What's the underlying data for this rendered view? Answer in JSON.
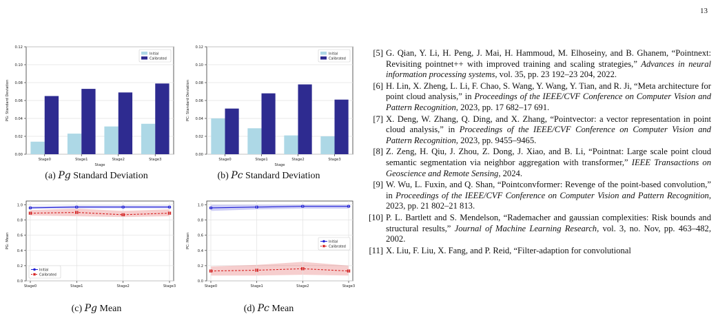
{
  "page_number": "13",
  "figures": [
    {
      "id": "a",
      "caption_prefix": "(a)",
      "caption_var": "Pg",
      "caption_rest": "Standard Deviation",
      "chart_data": {
        "type": "bar",
        "categories": [
          "Stage0",
          "Stage1",
          "Stage2",
          "Stage3"
        ],
        "series": [
          {
            "name": "Initial",
            "values": [
              0.014,
              0.023,
              0.031,
              0.034
            ],
            "color": "#add8e6"
          },
          {
            "name": "Calibrated",
            "values": [
              0.065,
              0.073,
              0.069,
              0.079
            ],
            "color": "#2e2b90"
          }
        ],
        "xlabel": "Stage",
        "ylabel": "PG: Standard Deviation",
        "ylim": [
          0,
          0.12
        ],
        "yticks": [
          "0.00",
          "0.02",
          "0.04",
          "0.06",
          "0.08",
          "0.10",
          "0.12"
        ],
        "grid": true,
        "legend": "top-right"
      }
    },
    {
      "id": "b",
      "caption_prefix": "(b)",
      "caption_var": "Pc",
      "caption_rest": "Standard Deviation",
      "chart_data": {
        "type": "bar",
        "categories": [
          "Stage0",
          "Stage1",
          "Stage2",
          "Stage3"
        ],
        "series": [
          {
            "name": "Initial",
            "values": [
              0.04,
              0.029,
              0.021,
              0.02
            ],
            "color": "#add8e6"
          },
          {
            "name": "Calibrated",
            "values": [
              0.051,
              0.068,
              0.078,
              0.061
            ],
            "color": "#2e2b90"
          }
        ],
        "xlabel": "Stage",
        "ylabel": "PC: Standard Deviation",
        "ylim": [
          0,
          0.12
        ],
        "yticks": [
          "0.00",
          "0.02",
          "0.04",
          "0.06",
          "0.08",
          "0.10",
          "0.12"
        ],
        "grid": true,
        "legend": "top-right"
      }
    },
    {
      "id": "c",
      "caption_prefix": "(c)",
      "caption_var": "Pg",
      "caption_rest": "Mean",
      "chart_data": {
        "type": "line",
        "categories": [
          "Stage0",
          "Stage1",
          "Stage2",
          "Stage3"
        ],
        "series": [
          {
            "name": "Initial",
            "values": [
              0.96,
              0.97,
              0.97,
              0.97
            ],
            "band": [
              [
                0.95,
                0.98
              ],
              [
                0.955,
                0.99
              ],
              [
                0.955,
                0.99
              ],
              [
                0.955,
                0.99
              ]
            ],
            "color": "#1f1fd6",
            "marker": "circle",
            "dash": false
          },
          {
            "name": "Calibrated",
            "values": [
              0.89,
              0.9,
              0.87,
              0.89
            ],
            "band": [
              [
                0.86,
                0.93
              ],
              [
                0.85,
                0.95
              ],
              [
                0.84,
                0.92
              ],
              [
                0.85,
                0.94
              ]
            ],
            "color": "#d62222",
            "marker": "square",
            "dash": true
          }
        ],
        "xlabel": "",
        "ylabel": "PG: Mean",
        "ylim": [
          0,
          1.05
        ],
        "yticks": [
          "0.0",
          "0.2",
          "0.4",
          "0.6",
          "0.8",
          "1.0"
        ],
        "grid": true,
        "legend": "bottom-left"
      }
    },
    {
      "id": "d",
      "caption_prefix": "(d)",
      "caption_var": "Pc",
      "caption_rest": "Mean",
      "chart_data": {
        "type": "line",
        "categories": [
          "Stage0",
          "Stage1",
          "Stage2",
          "Stage3"
        ],
        "series": [
          {
            "name": "Initial",
            "values": [
              0.96,
              0.97,
              0.98,
              0.98
            ],
            "band": [
              [
                0.92,
                1.0
              ],
              [
                0.94,
                1.0
              ],
              [
                0.95,
                1.0
              ],
              [
                0.95,
                1.0
              ]
            ],
            "color": "#1f1fd6",
            "marker": "circle",
            "dash": false
          },
          {
            "name": "Calibrated",
            "values": [
              0.13,
              0.14,
              0.16,
              0.13
            ],
            "band": [
              [
                0.07,
                0.19
              ],
              [
                0.07,
                0.21
              ],
              [
                0.08,
                0.25
              ],
              [
                0.07,
                0.2
              ]
            ],
            "color": "#d62222",
            "marker": "square",
            "dash": true
          }
        ],
        "xlabel": "",
        "ylabel": "PC: Mean",
        "ylim": [
          0,
          1.05
        ],
        "yticks": [
          "0.0",
          "0.2",
          "0.4",
          "0.6",
          "0.8",
          "1.0"
        ],
        "grid": true,
        "legend": "center-right"
      }
    }
  ],
  "references": [
    {
      "num": "[5]",
      "parts": [
        {
          "t": "G. Qian, Y. Li, H. Peng, J. Mai, H. Hammoud, M. Elhoseiny, and B. Ghanem, “Pointnext: Revisiting pointnet++ with improved training and scaling strategies,” "
        },
        {
          "t": "Advances in neural information processing systems",
          "i": true
        },
        {
          "t": ", vol. 35, pp. 23 192–23 204, 2022."
        }
      ]
    },
    {
      "num": "[6]",
      "parts": [
        {
          "t": "H. Lin, X. Zheng, L. Li, F. Chao, S. Wang, Y. Wang, Y. Tian, and R. Ji, “Meta architecture for point cloud analysis,” in "
        },
        {
          "t": "Proceedings of the IEEE/CVF Conference on Computer Vision and Pattern Recognition",
          "i": true
        },
        {
          "t": ", 2023, pp. 17 682–17 691."
        }
      ]
    },
    {
      "num": "[7]",
      "parts": [
        {
          "t": "X. Deng, W. Zhang, Q. Ding, and X. Zhang, “Pointvector: a vector representation in point cloud analysis,” in "
        },
        {
          "t": "Proceedings of the IEEE/CVF Conference on Computer Vision and Pattern Recognition",
          "i": true
        },
        {
          "t": ", 2023, pp. 9455–9465."
        }
      ]
    },
    {
      "num": "[8]",
      "parts": [
        {
          "t": "Z. Zeng, H. Qiu, J. Zhou, Z. Dong, J. Xiao, and B. Li, “Pointnat: Large scale point cloud semantic segmentation via neighbor aggregation with transformer,” "
        },
        {
          "t": "IEEE Transactions on Geoscience and Remote Sensing",
          "i": true
        },
        {
          "t": ", 2024."
        }
      ]
    },
    {
      "num": "[9]",
      "parts": [
        {
          "t": "W. Wu, L. Fuxin, and Q. Shan, “Pointconvformer: Revenge of the point-based convolution,” in "
        },
        {
          "t": "Proceedings of the IEEE/CVF Conference on Computer Vision and Pattern Recognition",
          "i": true
        },
        {
          "t": ", 2023, pp. 21 802–21 813."
        }
      ]
    },
    {
      "num": "[10]",
      "parts": [
        {
          "t": "P. L. Bartlett and S. Mendelson, “Rademacher and gaussian complexities: Risk bounds and structural results,” "
        },
        {
          "t": "Journal of Machine Learning Research",
          "i": true
        },
        {
          "t": ", vol. 3, no. Nov, pp. 463–482, 2002."
        }
      ]
    },
    {
      "num": "[11]",
      "parts": [
        {
          "t": "X. Liu, F. Liu, X. Fang, and P. Reid, “Filter-adaption for convolutional"
        }
      ]
    }
  ]
}
